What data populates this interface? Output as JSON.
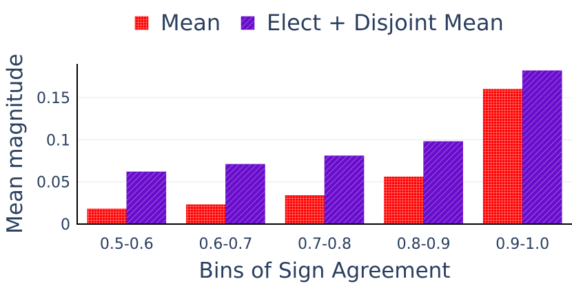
{
  "chart_data": {
    "type": "bar",
    "title": "",
    "xlabel": "Bins of Sign Agreement",
    "ylabel": "Mean magnitude",
    "categories": [
      "0.5-0.6",
      "0.6-0.7",
      "0.7-0.8",
      "0.8-0.9",
      "0.9-1.0"
    ],
    "series": [
      {
        "name": "Mean",
        "values": [
          0.018,
          0.023,
          0.034,
          0.056,
          0.16
        ],
        "color": "#ff0000",
        "pattern": "grid"
      },
      {
        "name": "Elect + Disjoint Mean",
        "values": [
          0.062,
          0.071,
          0.081,
          0.098,
          0.182
        ],
        "color": "#6a0dcc",
        "pattern": "diagonal"
      }
    ],
    "ylim": [
      0,
      0.19
    ],
    "yticks": [
      0,
      0.05,
      0.1,
      0.15
    ],
    "ytick_labels": [
      "0",
      "0.05",
      "0.1",
      "0.15"
    ],
    "grid": "horizontal",
    "legend": "top-center"
  }
}
